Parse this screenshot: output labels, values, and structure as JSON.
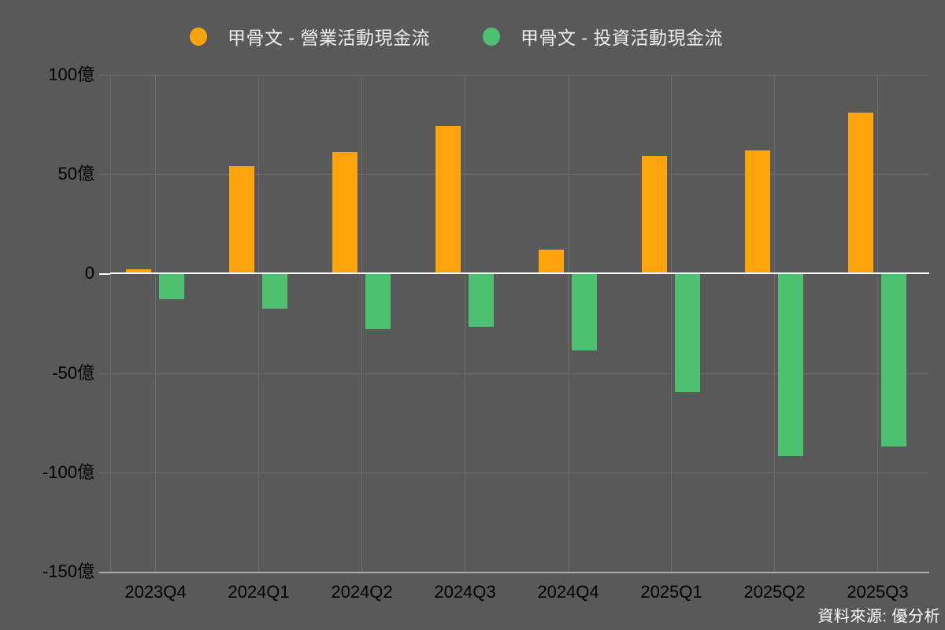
{
  "legend": {
    "items": [
      {
        "id": "operating",
        "label": "甲骨文 - 營業活動現金流",
        "color": "#FFA40D"
      },
      {
        "id": "investing",
        "label": "甲骨文 - 投資活動現金流",
        "color": "#4EC072"
      }
    ]
  },
  "footer": {
    "source": "資料來源: 優分析"
  },
  "colors": {
    "background": "#595959",
    "gridline": "#6B6B6B",
    "zero_line": "#FFFFFF",
    "bottom_axis_line": "#ACACAC",
    "text": "#EDEDED",
    "operating_bar": "#FFA40D",
    "investing_bar": "#4EC072"
  },
  "chart_data": {
    "type": "bar",
    "title": "",
    "unit": "億",
    "categories": [
      "2023Q4",
      "2024Q1",
      "2024Q2",
      "2024Q3",
      "2024Q4",
      "2025Q1",
      "2025Q2",
      "2025Q3"
    ],
    "series": [
      {
        "name": "甲骨文 - 營業活動現金流",
        "color": "#FFA40D",
        "values": [
          2,
          54,
          61,
          74,
          12,
          59,
          62,
          81
        ]
      },
      {
        "name": "甲骨文 - 投資活動現金流",
        "color": "#4EC072",
        "values": [
          -13,
          -18,
          -28,
          -27,
          -39,
          -60,
          -92,
          -87
        ]
      }
    ],
    "yticks": [
      {
        "label": "100億",
        "value": 100
      },
      {
        "label": "50億",
        "value": 50
      },
      {
        "label": "0",
        "value": 0
      },
      {
        "label": "-50億",
        "value": -50
      },
      {
        "label": "-100億",
        "value": -100
      },
      {
        "label": "-150億",
        "value": -150
      }
    ],
    "ylim": [
      -150,
      100
    ],
    "grid": true,
    "legend_position": "top"
  }
}
